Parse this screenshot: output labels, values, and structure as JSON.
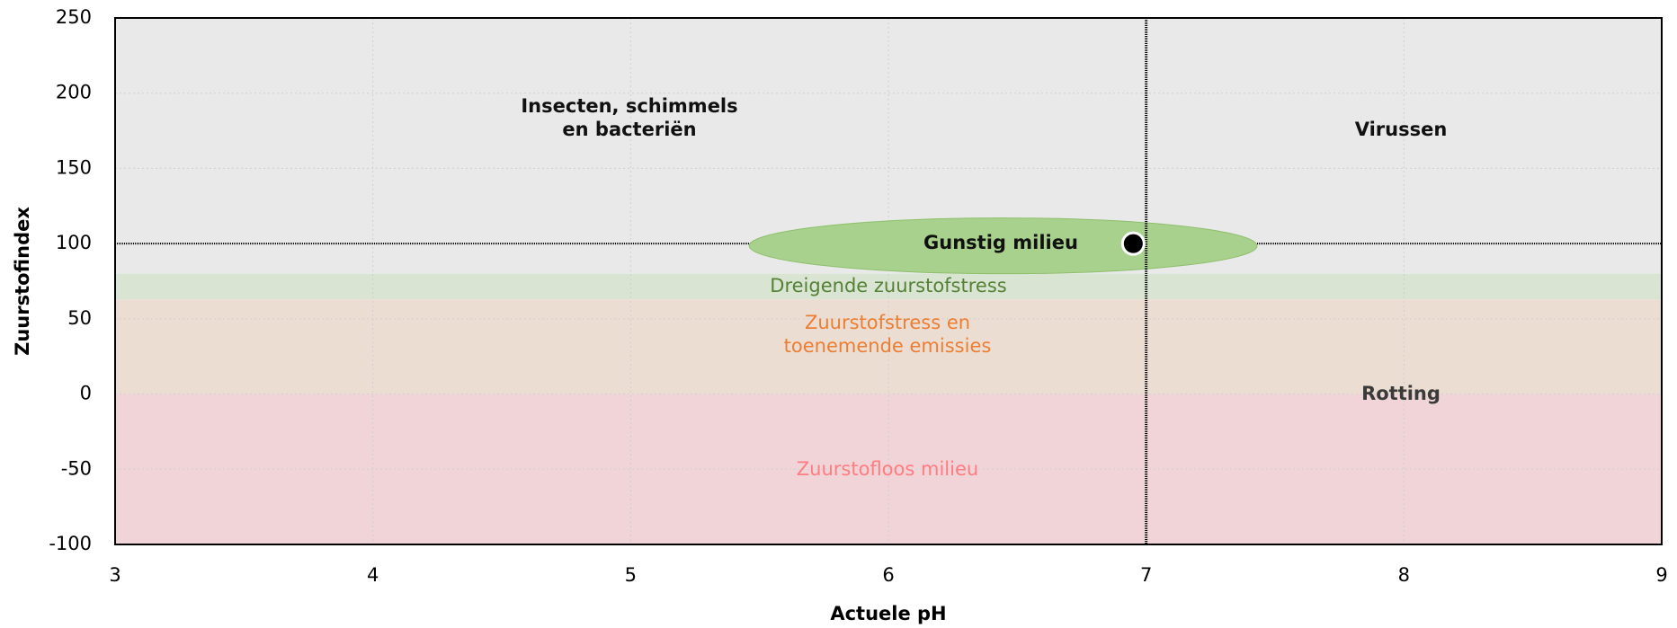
{
  "chart_data": {
    "type": "scatter",
    "x_label": "Actuele pH",
    "y_label": "Zuurstofindex",
    "xlim": [
      3,
      9
    ],
    "ylim": [
      -100,
      250
    ],
    "xticks": [
      3,
      4,
      5,
      6,
      7,
      8,
      9
    ],
    "yticks": [
      -100,
      -50,
      0,
      50,
      100,
      150,
      200,
      250
    ],
    "grid": true,
    "regions": [
      {
        "ylim": [
          80,
          250
        ],
        "color": "#e9e9e9"
      },
      {
        "ylim": [
          63,
          80
        ],
        "color": "#d9e4d3"
      },
      {
        "ylim": [
          0,
          63
        ],
        "color": "#ecddd3"
      },
      {
        "ylim": [
          -100,
          0
        ],
        "color": "#f0d4d8"
      }
    ],
    "ellipse": {
      "xlim": [
        5.46,
        7.43
      ],
      "ylim": [
        80,
        117
      ],
      "color": "#a9d18e"
    },
    "reference_lines": {
      "x": [
        7
      ],
      "y": [
        100
      ]
    },
    "series": [
      {
        "color": "#000000",
        "x": [
          6.95
        ],
        "values": [
          100
        ]
      }
    ],
    "annotations": [
      {
        "lines": [
          "Insecten, schimmels",
          "en bacteriën"
        ],
        "color": "#111111",
        "bold": true
      },
      {
        "lines": [
          "Virussen"
        ],
        "color": "#111111",
        "bold": true
      },
      {
        "lines": [
          "Gunstig milieu"
        ],
        "color": "#111111",
        "bold": true
      },
      {
        "lines": [
          "Dreigende zuurstofstress"
        ],
        "color": "#548235",
        "bold": false
      },
      {
        "lines": [
          "Zuurstofstress en",
          "toenemende emissies"
        ],
        "color": "#ed7d31",
        "bold": false
      },
      {
        "lines": [
          "Rotting"
        ],
        "color": "#3a3a3a",
        "bold": true
      },
      {
        "lines": [
          "Zuurstofloos milieu"
        ],
        "color": "#ff7c80",
        "bold": false
      }
    ]
  }
}
